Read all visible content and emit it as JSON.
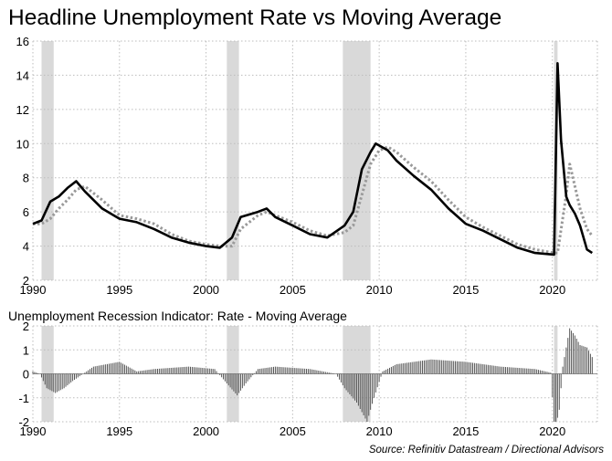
{
  "chart_data": [
    {
      "type": "line",
      "title": "Headline Unemployment Rate vs Moving Average",
      "xlabel": "",
      "ylabel": "",
      "xlim": [
        1990,
        2022.6
      ],
      "ylim": [
        2,
        16
      ],
      "grid": true,
      "x_ticks": [
        1990,
        1995,
        2000,
        2005,
        2010,
        2015,
        2020
      ],
      "x_tick_labels": [
        "1990",
        "1995",
        "2000",
        "2005",
        "2010",
        "2015",
        "2020"
      ],
      "y_ticks": [
        2,
        4,
        6,
        8,
        10,
        12,
        14,
        16
      ],
      "y_tick_labels": [
        "2",
        "4",
        "6",
        "8",
        "10",
        "12",
        "14",
        "16"
      ],
      "recessions": [
        [
          1990.5,
          1991.2
        ],
        [
          2001.2,
          2001.9
        ],
        [
          2007.9,
          2009.5
        ],
        [
          2020.1,
          2020.3
        ]
      ],
      "series": [
        {
          "name": "Unemployment Rate",
          "style": "solid",
          "color": "#000000",
          "x": [
            1990,
            1990.5,
            1991,
            1991.5,
            1992,
            1992.5,
            1993,
            1994,
            1995,
            1996,
            1997,
            1998,
            1999,
            2000,
            2000.8,
            2001.5,
            2002,
            2003,
            2003.5,
            2004,
            2005,
            2006,
            2007,
            2008,
            2008.5,
            2009,
            2009.5,
            2009.8,
            2010.5,
            2011,
            2012,
            2013,
            2014,
            2015,
            2016,
            2017,
            2018,
            2019,
            2020.1,
            2020.3,
            2020.5,
            2020.8,
            2021,
            2021.3,
            2021.6,
            2022,
            2022.3
          ],
          "y": [
            5.3,
            5.5,
            6.6,
            6.9,
            7.4,
            7.8,
            7.2,
            6.2,
            5.6,
            5.4,
            5.0,
            4.5,
            4.2,
            4.0,
            3.9,
            4.5,
            5.7,
            6.0,
            6.2,
            5.7,
            5.2,
            4.7,
            4.5,
            5.2,
            6.0,
            8.5,
            9.5,
            10.0,
            9.6,
            9.0,
            8.1,
            7.3,
            6.2,
            5.3,
            4.9,
            4.4,
            3.9,
            3.6,
            3.5,
            14.7,
            10.2,
            6.9,
            6.4,
            5.9,
            5.2,
            3.8,
            3.6
          ]
        },
        {
          "name": "Moving Average",
          "style": "dotted",
          "color": "#999999",
          "x": [
            1990,
            1990.5,
            1991,
            1991.5,
            1992,
            1992.5,
            1993,
            1994,
            1995,
            1996,
            1997,
            1998,
            1999,
            2000,
            2000.8,
            2001.5,
            2002,
            2003,
            2003.5,
            2004,
            2005,
            2006,
            2007,
            2008,
            2008.5,
            2009,
            2009.5,
            2010,
            2010.5,
            2011,
            2012,
            2013,
            2014,
            2015,
            2016,
            2017,
            2018,
            2019,
            2020.1,
            2020.3,
            2020.8,
            2021,
            2021.3,
            2021.6,
            2022,
            2022.3
          ],
          "y": [
            5.3,
            5.3,
            5.6,
            6.2,
            6.7,
            7.3,
            7.5,
            6.7,
            5.8,
            5.6,
            5.3,
            4.7,
            4.3,
            4.1,
            4.0,
            4.0,
            5.0,
            5.8,
            6.0,
            5.8,
            5.4,
            4.9,
            4.6,
            4.8,
            5.2,
            7.0,
            8.8,
            9.6,
            9.8,
            9.5,
            8.6,
            7.8,
            6.7,
            5.7,
            5.1,
            4.6,
            4.1,
            3.8,
            3.6,
            3.6,
            7.0,
            8.8,
            7.5,
            6.2,
            5.0,
            4.6
          ]
        }
      ]
    },
    {
      "type": "bar",
      "title": "Unemployment Recession Indicator: Rate - Moving Average",
      "xlabel": "",
      "ylabel": "",
      "xlim": [
        1990,
        2022.6
      ],
      "ylim": [
        -2,
        2
      ],
      "grid": true,
      "x_ticks": [
        1990,
        1995,
        2000,
        2005,
        2010,
        2015,
        2020
      ],
      "x_tick_labels": [
        "1990",
        "1995",
        "2000",
        "2005",
        "2010",
        "2015",
        "2020"
      ],
      "y_ticks": [
        -2,
        -1,
        0,
        1,
        2
      ],
      "y_tick_labels": [
        "-2",
        "-1",
        "0",
        "1",
        "2"
      ],
      "recessions": [
        [
          1990.5,
          1991.2
        ],
        [
          2001.2,
          2001.9
        ],
        [
          2007.9,
          2009.5
        ],
        [
          2020.1,
          2020.3
        ]
      ],
      "indicator_profile": {
        "x": [
          1990,
          1990.4,
          1990.8,
          1991.3,
          1991.8,
          1992.3,
          1993.5,
          1995,
          1996,
          1997,
          1999,
          2000.5,
          2001.2,
          2001.8,
          2002.3,
          2003,
          2004,
          2006,
          2007.5,
          2008,
          2008.7,
          2009.3,
          2009.7,
          2010.2,
          2011,
          2013,
          2015,
          2017,
          2019,
          2019.9,
          2020.1,
          2020.25,
          2020.4,
          2020.6,
          2021,
          2021.3,
          2021.6,
          2022,
          2022.3
        ],
        "y": [
          0.1,
          0.0,
          -0.6,
          -0.8,
          -0.6,
          -0.3,
          0.3,
          0.5,
          0.1,
          0.2,
          0.3,
          0.2,
          -0.4,
          -0.9,
          -0.4,
          0.2,
          0.3,
          0.2,
          0.0,
          -0.6,
          -1.2,
          -2.0,
          -1.0,
          0.1,
          0.4,
          0.6,
          0.5,
          0.3,
          0.2,
          0.05,
          -2.0,
          -2.0,
          -1.5,
          0.3,
          1.9,
          1.6,
          1.2,
          1.1,
          0.7
        ]
      },
      "bar_step_years": 0.1
    }
  ],
  "source": "Source: Refinitiv Datastream / Directional Advisors"
}
